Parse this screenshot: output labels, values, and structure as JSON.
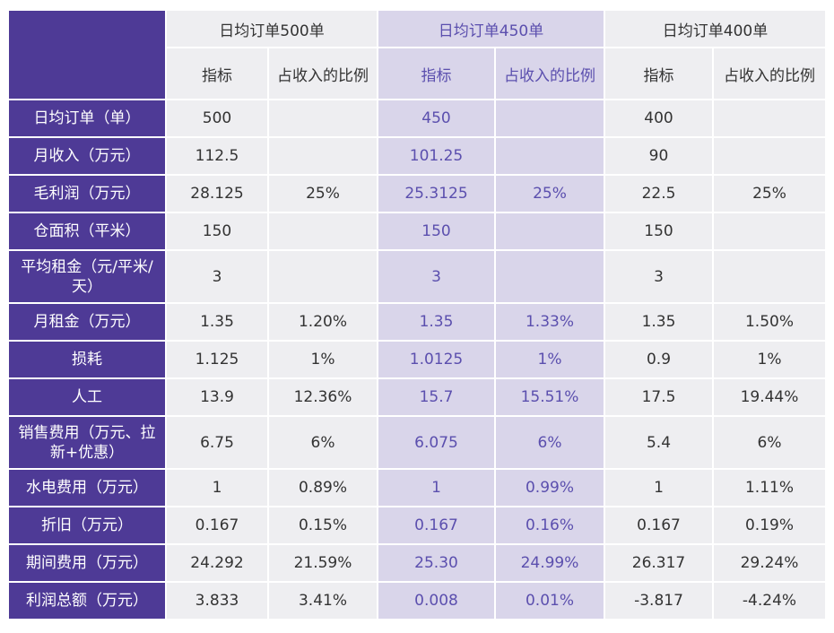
{
  "groups": [
    {
      "title": "日均订单500单"
    },
    {
      "title": "日均订单450单"
    },
    {
      "title": "日均订单400单"
    }
  ],
  "subheaders": {
    "metric": "指标",
    "ratio": "占收入的比例"
  },
  "rows": [
    {
      "label": "日均订单（单）",
      "cells": [
        "500",
        "",
        "450",
        "",
        "400",
        ""
      ]
    },
    {
      "label": "月收入（万元）",
      "cells": [
        "112.5",
        "",
        "101.25",
        "",
        "90",
        ""
      ]
    },
    {
      "label": "毛利润（万元）",
      "cells": [
        "28.125",
        "25%",
        "25.3125",
        "25%",
        "22.5",
        "25%"
      ]
    },
    {
      "label": "仓面积（平米）",
      "cells": [
        "150",
        "",
        "150",
        "",
        "150",
        ""
      ]
    },
    {
      "label": "平均租金（元/平米/天）",
      "cells": [
        "3",
        "",
        "3",
        "",
        "3",
        ""
      ]
    },
    {
      "label": "月租金（万元）",
      "cells": [
        "1.35",
        "1.20%",
        "1.35",
        "1.33%",
        "1.35",
        "1.50%"
      ]
    },
    {
      "label": "损耗",
      "cells": [
        "1.125",
        "1%",
        "1.0125",
        "1%",
        "0.9",
        "1%"
      ]
    },
    {
      "label": "人工",
      "cells": [
        "13.9",
        "12.36%",
        "15.7",
        "15.51%",
        "17.5",
        "19.44%"
      ]
    },
    {
      "label": "销售费用（万元、拉新+优惠）",
      "cells": [
        "6.75",
        "6%",
        "6.075",
        "6%",
        "5.4",
        "6%"
      ]
    },
    {
      "label": "水电费用（万元）",
      "cells": [
        "1",
        "0.89%",
        "1",
        "0.99%",
        "1",
        "1.11%"
      ]
    },
    {
      "label": "折旧（万元）",
      "cells": [
        "0.167",
        "0.15%",
        "0.167",
        "0.16%",
        "0.167",
        "0.19%"
      ]
    },
    {
      "label": "期间费用（万元）",
      "cells": [
        "24.292",
        "21.59%",
        "25.30",
        "24.99%",
        "26.317",
        "29.24%"
      ]
    },
    {
      "label": "利润总额（万元）",
      "cells": [
        "3.833",
        "3.41%",
        "0.008",
        "0.01%",
        "-3.817",
        "-4.24%"
      ]
    }
  ]
}
